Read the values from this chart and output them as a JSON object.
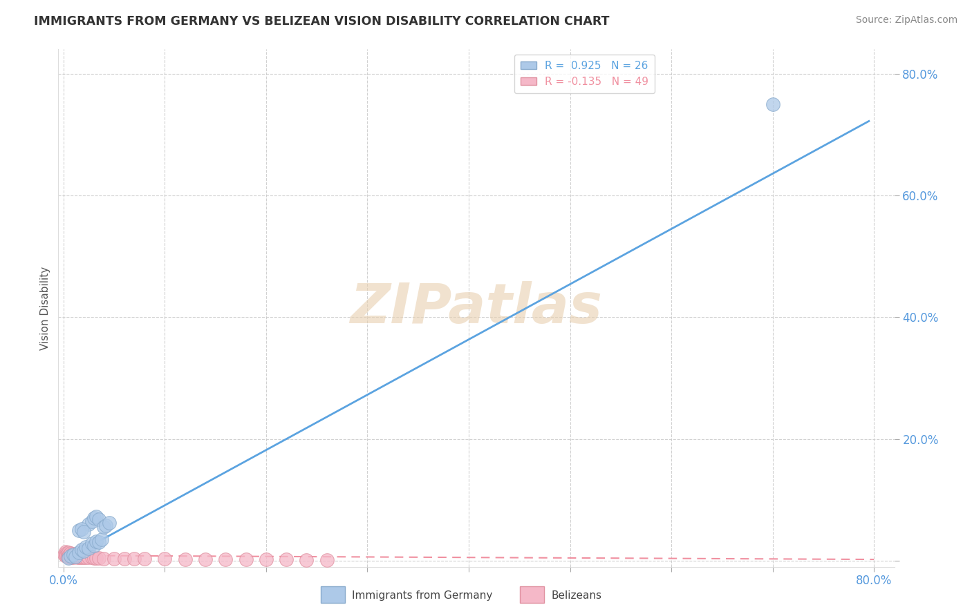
{
  "title": "IMMIGRANTS FROM GERMANY VS BELIZEAN VISION DISABILITY CORRELATION CHART",
  "source_text": "Source: ZipAtlas.com",
  "ylabel": "Vision Disability",
  "xlim": [
    -0.005,
    0.82
  ],
  "ylim": [
    -0.01,
    0.84
  ],
  "xticks": [
    0.0,
    0.1,
    0.2,
    0.3,
    0.4,
    0.5,
    0.6,
    0.7,
    0.8
  ],
  "yticks": [
    0.0,
    0.2,
    0.4,
    0.6,
    0.8
  ],
  "xticklabels": [
    "0.0%",
    "",
    "",
    "",
    "",
    "",
    "",
    "",
    "80.0%"
  ],
  "yticklabels": [
    "",
    "20.0%",
    "40.0%",
    "60.0%",
    "80.0%"
  ],
  "background_color": "#ffffff",
  "grid_color": "#cccccc",
  "blue_r": 0.925,
  "blue_n": 26,
  "pink_r": -0.135,
  "pink_n": 49,
  "blue_color": "#adc9e8",
  "pink_color": "#f5b8c8",
  "blue_edge_color": "#88aacc",
  "pink_edge_color": "#e090a0",
  "blue_line_color": "#5ba3e0",
  "pink_line_color": "#f090a0",
  "legend_label_blue": "Immigrants from Germany",
  "legend_label_pink": "Belizeans",
  "watermark": "ZIPatlas",
  "watermark_color": "#e8d0b0",
  "tick_label_color": "#5599dd",
  "blue_line_x0": 0.0,
  "blue_line_y0": 0.0,
  "blue_line_x1": 0.795,
  "blue_line_y1": 0.722,
  "pink_line_x0": 0.0,
  "pink_line_y0": 0.0085,
  "pink_line_x1": 0.8,
  "pink_line_y1": 0.002,
  "blue_scatter_x": [
    0.005,
    0.007,
    0.01,
    0.012,
    0.015,
    0.018,
    0.02,
    0.022,
    0.025,
    0.028,
    0.03,
    0.032,
    0.035,
    0.038,
    0.025,
    0.028,
    0.03,
    0.032,
    0.035,
    0.04,
    0.042,
    0.045,
    0.015,
    0.018,
    0.02,
    0.7
  ],
  "blue_scatter_y": [
    0.004,
    0.008,
    0.01,
    0.007,
    0.013,
    0.018,
    0.016,
    0.022,
    0.02,
    0.028,
    0.025,
    0.032,
    0.03,
    0.035,
    0.06,
    0.065,
    0.07,
    0.072,
    0.068,
    0.055,
    0.058,
    0.062,
    0.05,
    0.052,
    0.048,
    0.75
  ],
  "pink_scatter_x": [
    0.001,
    0.002,
    0.002,
    0.003,
    0.003,
    0.004,
    0.004,
    0.005,
    0.005,
    0.006,
    0.006,
    0.007,
    0.007,
    0.008,
    0.008,
    0.009,
    0.009,
    0.01,
    0.01,
    0.011,
    0.012,
    0.013,
    0.014,
    0.015,
    0.016,
    0.017,
    0.018,
    0.019,
    0.02,
    0.022,
    0.025,
    0.028,
    0.03,
    0.032,
    0.035,
    0.04,
    0.05,
    0.06,
    0.07,
    0.08,
    0.1,
    0.12,
    0.14,
    0.16,
    0.18,
    0.2,
    0.22,
    0.24,
    0.26
  ],
  "pink_scatter_y": [
    0.01,
    0.015,
    0.008,
    0.012,
    0.009,
    0.011,
    0.007,
    0.013,
    0.008,
    0.01,
    0.006,
    0.012,
    0.007,
    0.009,
    0.005,
    0.011,
    0.007,
    0.009,
    0.006,
    0.008,
    0.007,
    0.008,
    0.006,
    0.007,
    0.006,
    0.007,
    0.005,
    0.007,
    0.006,
    0.005,
    0.006,
    0.005,
    0.004,
    0.004,
    0.004,
    0.003,
    0.003,
    0.003,
    0.003,
    0.003,
    0.003,
    0.002,
    0.002,
    0.002,
    0.002,
    0.002,
    0.002,
    0.001,
    0.001
  ]
}
